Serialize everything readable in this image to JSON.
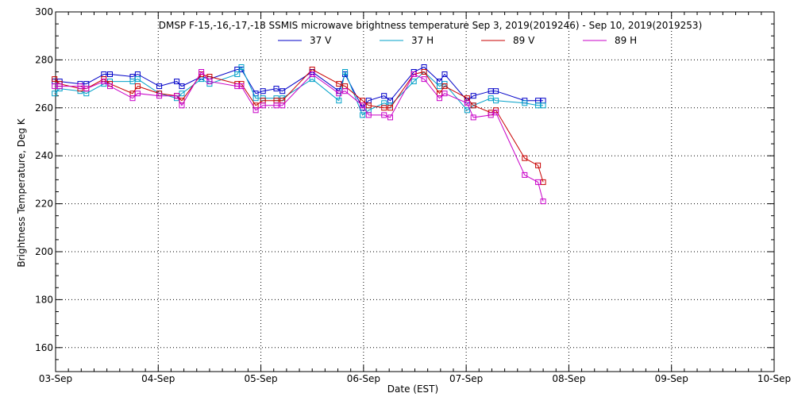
{
  "chart_data": {
    "type": "line",
    "title": "DMSP F-15,-16,-17,-18 SSMIS microwave brightness temperature Sep  3, 2019(2019246) - Sep 10, 2019(2019253)",
    "xlabel": "Date (EST)",
    "ylabel": "Brightness Temperature, Deg K",
    "xlim": [
      0,
      7
    ],
    "ylim": [
      150,
      300
    ],
    "x_ticks": [
      {
        "value": 0,
        "label": "03-Sep"
      },
      {
        "value": 1,
        "label": "04-Sep"
      },
      {
        "value": 2,
        "label": "05-Sep"
      },
      {
        "value": 3,
        "label": "06-Sep"
      },
      {
        "value": 4,
        "label": "07-Sep"
      },
      {
        "value": 5,
        "label": "08-Sep"
      },
      {
        "value": 6,
        "label": "09-Sep"
      },
      {
        "value": 7,
        "label": "10-Sep"
      }
    ],
    "y_ticks": [
      160,
      180,
      200,
      220,
      240,
      260,
      280,
      300
    ],
    "grid": true,
    "legend_position": "top",
    "series": [
      {
        "name": "37 V",
        "color": "#0000c8",
        "x": [
          -0.01,
          0.04,
          0.24,
          0.3,
          0.47,
          0.53,
          0.75,
          0.8,
          1.01,
          1.18,
          1.23,
          1.42,
          1.5,
          1.77,
          1.81,
          1.95,
          2.02,
          2.15,
          2.21,
          2.5,
          2.76,
          2.82,
          2.99,
          3.05,
          3.2,
          3.26,
          3.49,
          3.59,
          3.74,
          3.79,
          4.01,
          4.07,
          4.24,
          4.29,
          4.57,
          4.7,
          4.75
        ],
        "y": [
          271,
          271,
          270,
          270,
          274,
          274,
          273,
          274,
          269,
          271,
          269,
          273,
          272,
          276,
          276,
          266,
          267,
          268,
          267,
          275,
          267,
          274,
          260,
          263,
          265,
          263,
          275,
          277,
          271,
          274,
          263,
          265,
          267,
          267,
          263,
          263,
          263
        ]
      },
      {
        "name": "37 H",
        "color": "#00a0c8",
        "x": [
          -0.01,
          0.04,
          0.24,
          0.3,
          0.47,
          0.53,
          0.75,
          0.8,
          1.01,
          1.18,
          1.23,
          1.42,
          1.5,
          1.77,
          1.81,
          1.95,
          2.02,
          2.15,
          2.21,
          2.5,
          2.76,
          2.82,
          2.99,
          3.05,
          3.2,
          3.26,
          3.49,
          3.59,
          3.74,
          3.79,
          4.01,
          4.07,
          4.24,
          4.29,
          4.57,
          4.7,
          4.75
        ],
        "y": [
          266,
          268,
          267,
          266,
          270,
          271,
          271,
          272,
          266,
          264,
          266,
          272,
          270,
          274,
          277,
          264,
          264,
          264,
          264,
          272,
          263,
          275,
          257,
          259,
          262,
          261,
          271,
          275,
          269,
          270,
          259,
          261,
          264,
          263,
          262,
          261,
          261
        ]
      },
      {
        "name": "89 V",
        "color": "#c80000",
        "x": [
          -0.01,
          0.04,
          0.24,
          0.3,
          0.47,
          0.53,
          0.75,
          0.8,
          1.01,
          1.18,
          1.23,
          1.42,
          1.5,
          1.77,
          1.81,
          1.95,
          2.02,
          2.15,
          2.21,
          2.5,
          2.76,
          2.82,
          2.99,
          3.05,
          3.2,
          3.26,
          3.49,
          3.59,
          3.74,
          3.79,
          4.01,
          4.07,
          4.24,
          4.29,
          4.57,
          4.7,
          4.75
        ],
        "y": [
          272,
          270,
          268,
          268,
          272,
          270,
          266,
          269,
          266,
          265,
          263,
          274,
          273,
          270,
          270,
          261,
          263,
          263,
          263,
          276,
          270,
          269,
          263,
          261,
          260,
          260,
          274,
          275,
          266,
          269,
          264,
          261,
          258,
          259,
          239,
          236,
          229
        ]
      },
      {
        "name": "89 H",
        "color": "#c800c8",
        "x": [
          -0.01,
          0.04,
          0.24,
          0.3,
          0.47,
          0.53,
          0.75,
          0.8,
          1.01,
          1.18,
          1.23,
          1.42,
          1.5,
          1.77,
          1.81,
          1.95,
          2.02,
          2.15,
          2.21,
          2.5,
          2.76,
          2.82,
          2.99,
          3.05,
          3.2,
          3.26,
          3.49,
          3.59,
          3.74,
          3.79,
          4.01,
          4.07,
          4.24,
          4.29,
          4.57,
          4.7,
          4.75
        ],
        "y": [
          269,
          269,
          269,
          268,
          271,
          269,
          264,
          266,
          265,
          265,
          261,
          275,
          271,
          269,
          269,
          259,
          261,
          261,
          261,
          274,
          266,
          267,
          261,
          257,
          257,
          256,
          274,
          272,
          264,
          266,
          262,
          256,
          257,
          258,
          232,
          229,
          221
        ]
      }
    ]
  }
}
